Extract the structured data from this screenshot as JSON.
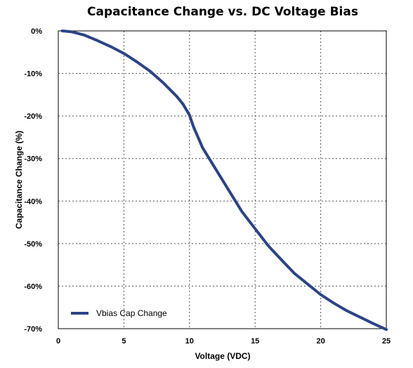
{
  "chart_data": {
    "type": "line",
    "title": "Capacitance Change vs. DC Voltage Bias",
    "xlabel": "Voltage (VDC)",
    "ylabel": "Capacitance Change (%)",
    "xlim": [
      0,
      25
    ],
    "ylim": [
      -70,
      0
    ],
    "x_ticks": [
      0,
      5,
      10,
      15,
      20,
      25
    ],
    "x_tick_labels": [
      "0",
      "5",
      "10",
      "15",
      "20",
      "25"
    ],
    "y_ticks": [
      0,
      -10,
      -20,
      -30,
      -40,
      -50,
      -60,
      -70
    ],
    "y_tick_labels": [
      "0%",
      "-10%",
      "-20%",
      "-30%",
      "-40%",
      "-50%",
      "-60%",
      "-70%"
    ],
    "grid": true,
    "legend_position": "bottom-left",
    "series": [
      {
        "name": "Vbias Cap Change",
        "color": "#2b4486",
        "x": [
          0.3,
          1,
          2,
          3,
          4,
          5,
          6,
          7,
          8,
          9,
          9.5,
          10,
          10.3,
          11,
          12,
          13,
          14,
          15,
          16,
          17,
          18,
          19,
          20,
          21,
          22,
          23,
          24,
          25
        ],
        "y": [
          0,
          -0.2,
          -1,
          -2.3,
          -3.7,
          -5.3,
          -7.3,
          -9.5,
          -12.2,
          -15.3,
          -17.2,
          -19.8,
          -22.5,
          -27.5,
          -32.5,
          -37.5,
          -42.5,
          -46.5,
          -50.5,
          -53.8,
          -57,
          -59.5,
          -62,
          -64,
          -65.8,
          -67.3,
          -68.8,
          -70.2
        ]
      }
    ]
  }
}
